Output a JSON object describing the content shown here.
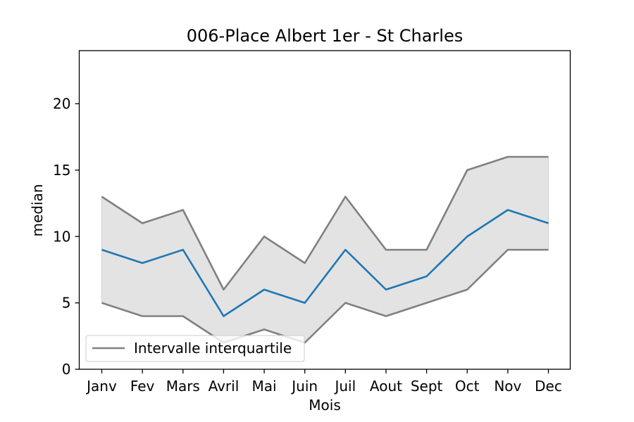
{
  "chart_data": {
    "type": "line",
    "title": "006-Place Albert 1er - St Charles",
    "xlabel": "Mois",
    "ylabel": "median",
    "categories": [
      "Janv",
      "Fev",
      "Mars",
      "Avril",
      "Mai",
      "Juin",
      "Juil",
      "Aout",
      "Sept",
      "Oct",
      "Nov",
      "Dec"
    ],
    "series": [
      {
        "role": "median",
        "color": "#1f77b4",
        "values": [
          9,
          8,
          9,
          4,
          6,
          5,
          9,
          6,
          7,
          10,
          12,
          11
        ]
      },
      {
        "role": "q3",
        "color": "#808080",
        "values": [
          13,
          11,
          12,
          6,
          10,
          8,
          13,
          9,
          9,
          15,
          16,
          16
        ]
      },
      {
        "role": "q1",
        "color": "#808080",
        "values": [
          5,
          4,
          4,
          2,
          3,
          2,
          5,
          4,
          5,
          6,
          9,
          9
        ]
      }
    ],
    "band_fill": "#e3e3e3",
    "ylim": [
      0,
      24
    ],
    "yticks": [
      0,
      5,
      10,
      15,
      20
    ],
    "grid": false,
    "legend": {
      "position": "lower-left",
      "entries": [
        {
          "label": "Intervalle interquartile",
          "color": "#808080"
        }
      ]
    }
  }
}
